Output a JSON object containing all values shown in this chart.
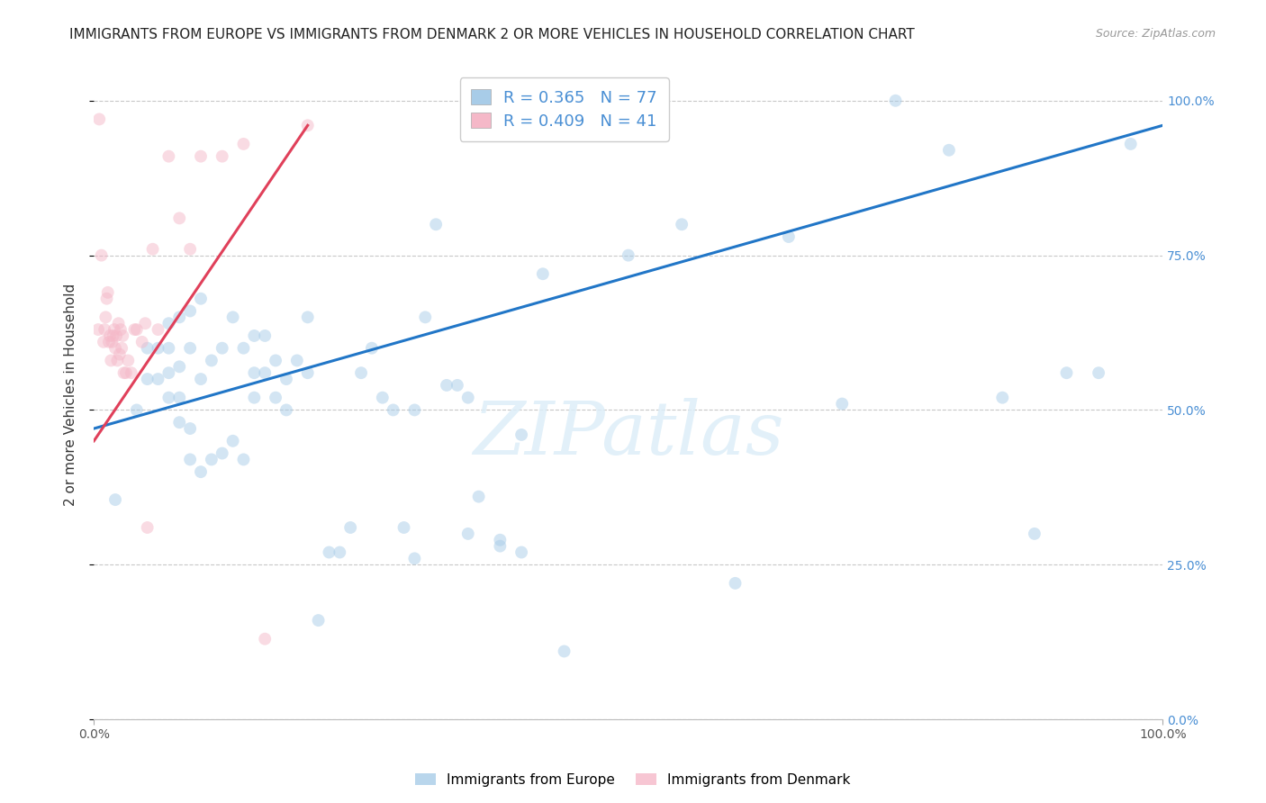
{
  "title": "IMMIGRANTS FROM EUROPE VS IMMIGRANTS FROM DENMARK 2 OR MORE VEHICLES IN HOUSEHOLD CORRELATION CHART",
  "source": "Source: ZipAtlas.com",
  "ylabel": "2 or more Vehicles in Household",
  "watermark": "ZIPatlas",
  "blue_R": 0.365,
  "blue_N": 77,
  "pink_R": 0.409,
  "pink_N": 41,
  "blue_color": "#a8cce8",
  "pink_color": "#f5b8c8",
  "blue_line_color": "#2176c7",
  "pink_line_color": "#e0405a",
  "legend_blue_label": "Immigrants from Europe",
  "legend_pink_label": "Immigrants from Denmark",
  "xlim": [
    0,
    1
  ],
  "ylim": [
    0,
    1.05
  ],
  "ytick_positions": [
    0.0,
    0.25,
    0.5,
    0.75,
    1.0
  ],
  "ytick_labels": [
    "0.0%",
    "25.0%",
    "50.0%",
    "75.0%",
    "100.0%"
  ],
  "blue_points_x": [
    0.02,
    0.04,
    0.05,
    0.05,
    0.06,
    0.06,
    0.07,
    0.07,
    0.07,
    0.07,
    0.08,
    0.08,
    0.08,
    0.08,
    0.09,
    0.09,
    0.09,
    0.09,
    0.1,
    0.1,
    0.1,
    0.11,
    0.11,
    0.12,
    0.12,
    0.13,
    0.13,
    0.14,
    0.14,
    0.15,
    0.15,
    0.15,
    0.16,
    0.16,
    0.17,
    0.17,
    0.18,
    0.18,
    0.19,
    0.2,
    0.2,
    0.21,
    0.22,
    0.23,
    0.24,
    0.25,
    0.26,
    0.27,
    0.28,
    0.29,
    0.3,
    0.31,
    0.32,
    0.33,
    0.34,
    0.35,
    0.36,
    0.38,
    0.4,
    0.42,
    0.44,
    0.5,
    0.55,
    0.6,
    0.65,
    0.7,
    0.75,
    0.8,
    0.85,
    0.88,
    0.91,
    0.94,
    0.97,
    0.3,
    0.35,
    0.38,
    0.4
  ],
  "blue_points_y": [
    0.355,
    0.5,
    0.55,
    0.6,
    0.55,
    0.6,
    0.52,
    0.56,
    0.6,
    0.64,
    0.48,
    0.52,
    0.57,
    0.65,
    0.42,
    0.47,
    0.6,
    0.66,
    0.4,
    0.55,
    0.68,
    0.42,
    0.58,
    0.43,
    0.6,
    0.45,
    0.65,
    0.42,
    0.6,
    0.52,
    0.56,
    0.62,
    0.56,
    0.62,
    0.52,
    0.58,
    0.5,
    0.55,
    0.58,
    0.56,
    0.65,
    0.16,
    0.27,
    0.27,
    0.31,
    0.56,
    0.6,
    0.52,
    0.5,
    0.31,
    0.26,
    0.65,
    0.8,
    0.54,
    0.54,
    0.52,
    0.36,
    0.29,
    0.46,
    0.72,
    0.11,
    0.75,
    0.8,
    0.22,
    0.78,
    0.51,
    1.0,
    0.92,
    0.52,
    0.3,
    0.56,
    0.56,
    0.93,
    0.5,
    0.3,
    0.28,
    0.27
  ],
  "pink_points_x": [
    0.004,
    0.005,
    0.007,
    0.009,
    0.01,
    0.011,
    0.012,
    0.013,
    0.014,
    0.015,
    0.016,
    0.017,
    0.018,
    0.019,
    0.02,
    0.021,
    0.022,
    0.023,
    0.024,
    0.025,
    0.026,
    0.027,
    0.028,
    0.03,
    0.032,
    0.035,
    0.038,
    0.04,
    0.045,
    0.048,
    0.05,
    0.055,
    0.06,
    0.07,
    0.08,
    0.09,
    0.1,
    0.12,
    0.14,
    0.16,
    0.2
  ],
  "pink_points_y": [
    0.63,
    0.97,
    0.75,
    0.61,
    0.63,
    0.65,
    0.68,
    0.69,
    0.61,
    0.62,
    0.58,
    0.61,
    0.62,
    0.63,
    0.6,
    0.62,
    0.58,
    0.64,
    0.59,
    0.63,
    0.6,
    0.62,
    0.56,
    0.56,
    0.58,
    0.56,
    0.63,
    0.63,
    0.61,
    0.64,
    0.31,
    0.76,
    0.63,
    0.91,
    0.81,
    0.76,
    0.91,
    0.91,
    0.93,
    0.13,
    0.96
  ],
  "blue_line_x": [
    0.0,
    1.0
  ],
  "blue_line_y": [
    0.47,
    0.96
  ],
  "pink_line_x": [
    0.0,
    0.2
  ],
  "pink_line_y": [
    0.45,
    0.96
  ],
  "marker_size": 100,
  "marker_alpha": 0.5,
  "grid_color": "#c8c8c8",
  "grid_style": "--",
  "background_color": "#ffffff",
  "title_fontsize": 11,
  "source_fontsize": 9,
  "axis_label_fontsize": 11,
  "tick_fontsize": 10,
  "legend_fontsize": 13,
  "right_tick_color": "#4a8fd4"
}
